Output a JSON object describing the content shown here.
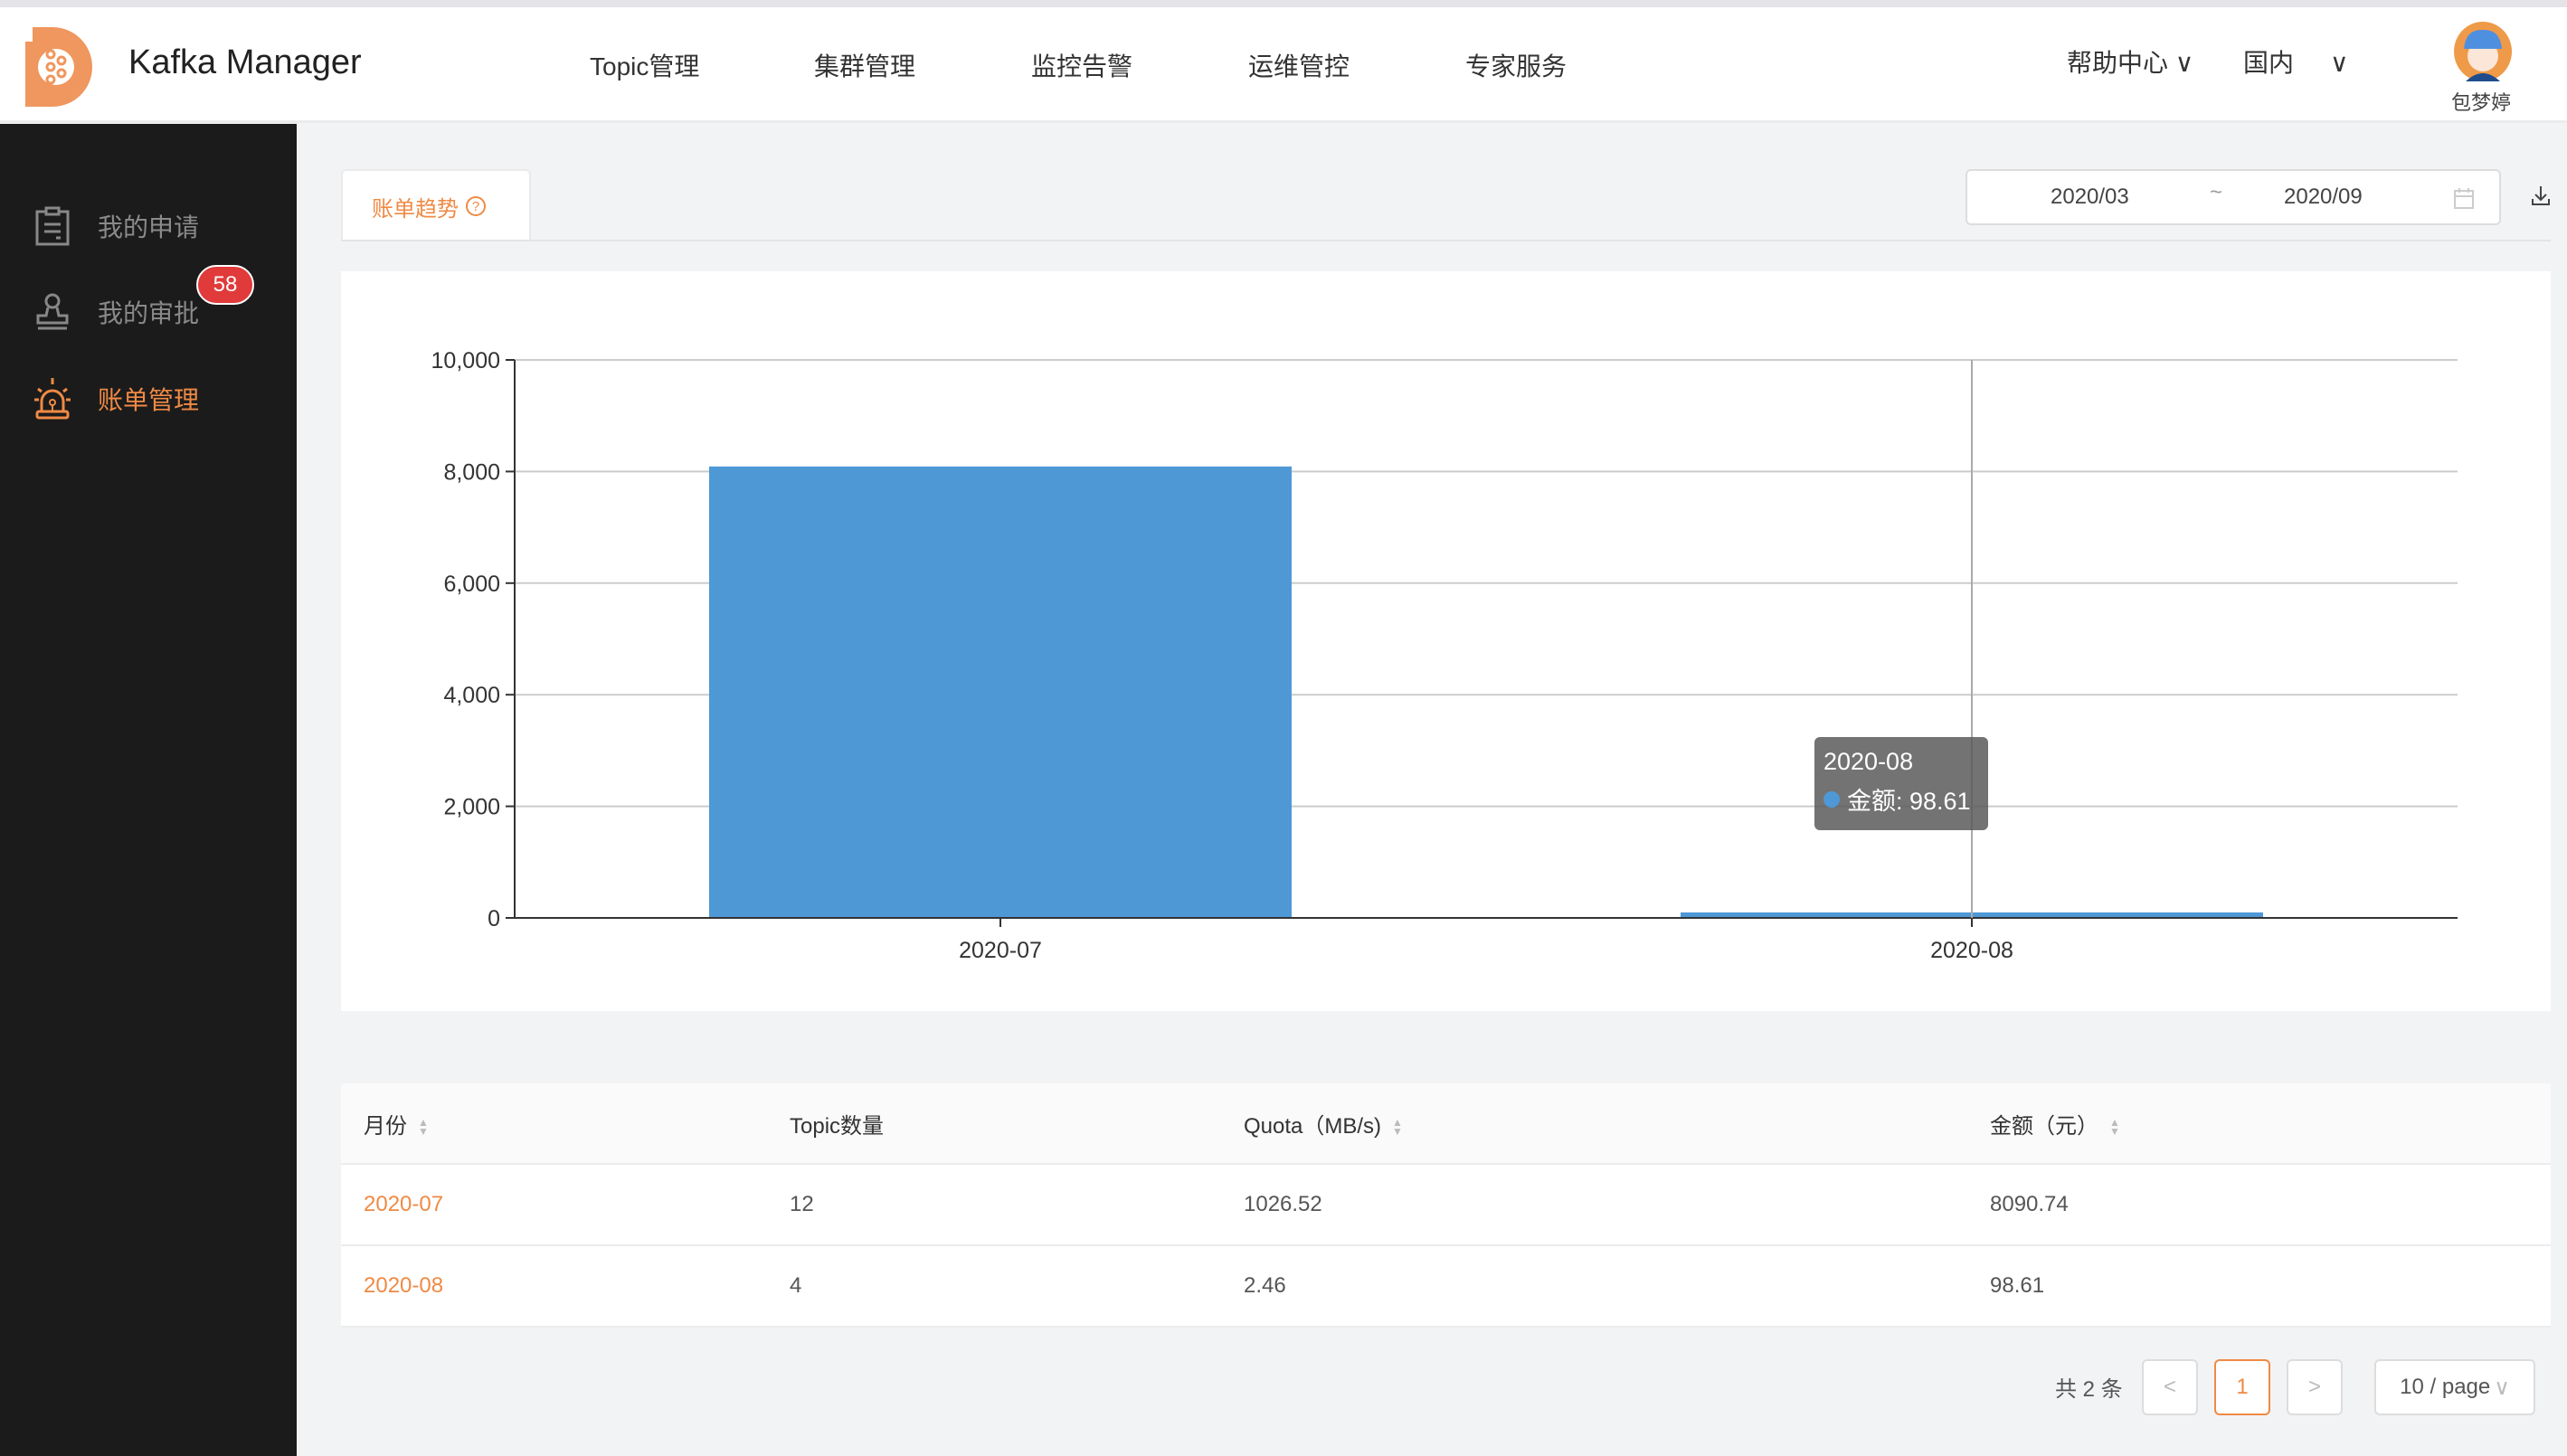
{
  "header": {
    "title": "Kafka Manager",
    "nav": [
      "Topic管理",
      "集群管理",
      "监控告警",
      "运维管控",
      "专家服务"
    ],
    "help": "帮助中心",
    "region": "国内",
    "user": "包梦婷"
  },
  "sidebar": {
    "items": [
      {
        "label": "我的申请",
        "icon": "clipboard-icon"
      },
      {
        "label": "我的审批",
        "icon": "stamp-icon",
        "badge": "58"
      },
      {
        "label": "账单管理",
        "icon": "alarm-icon",
        "active": true
      }
    ]
  },
  "tab": {
    "label": "账单趋势"
  },
  "date_range": {
    "start": "2020/03",
    "sep": "~",
    "end": "2020/09"
  },
  "colors": {
    "accent": "#ef8a45",
    "bar": "#4f98d6",
    "sidebar": "#1b1b1b"
  },
  "chart_data": {
    "type": "bar",
    "categories": [
      "2020-07",
      "2020-08"
    ],
    "series": [
      {
        "name": "金额",
        "values": [
          8090.74,
          98.61
        ]
      }
    ],
    "ylim": [
      0,
      10000
    ],
    "yticks": [
      "0",
      "2,000",
      "4,000",
      "6,000",
      "8,000",
      "10,000"
    ],
    "grid": true,
    "tooltip": {
      "title": "2020-08",
      "label": "金额: 98.61"
    }
  },
  "table": {
    "headers": [
      "月份",
      "Topic数量",
      "Quota（MB/s)",
      "金额（元）"
    ],
    "rows": [
      [
        "2020-07",
        "12",
        "1026.52",
        "8090.74"
      ],
      [
        "2020-08",
        "4",
        "2.46",
        "98.61"
      ]
    ]
  },
  "pagination": {
    "total": "共 2 条",
    "page": "1",
    "size": "10 / page",
    "prev": "<",
    "next": ">"
  }
}
